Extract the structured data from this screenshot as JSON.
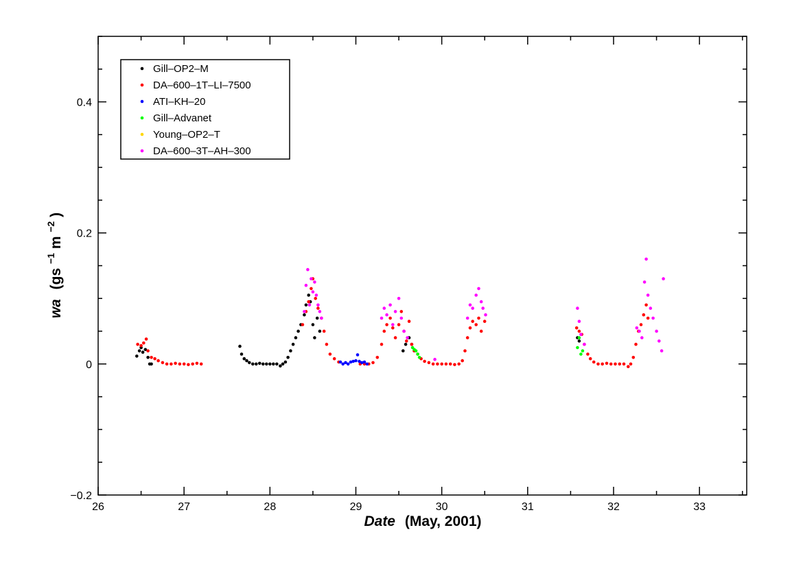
{
  "chart_data": {
    "type": "scatter",
    "xlabel": {
      "italic": "Date",
      "rest": "(May,  2001)"
    },
    "ylabel": {
      "italic": "wa",
      "unit_open": "(gs",
      "sup1": "−1",
      "mid": " m",
      "sup2": "−2",
      "unit_close": ")"
    },
    "xlim": [
      26,
      33.55
    ],
    "ylim": [
      -0.2,
      0.5
    ],
    "x_ticks": [
      "26",
      "27",
      "28",
      "29",
      "30",
      "31",
      "32",
      "33"
    ],
    "y_ticks": [
      "−0.2",
      "0",
      "0.2",
      "0.4"
    ],
    "grid": false,
    "legend_position": "top-left",
    "series": [
      {
        "name": "Gill–OP2–M",
        "color": "#000000",
        "points": [
          [
            26.45,
            0.012
          ],
          [
            26.48,
            0.02
          ],
          [
            26.5,
            0.025
          ],
          [
            26.52,
            0.018
          ],
          [
            26.55,
            0.022
          ],
          [
            26.58,
            0.01
          ],
          [
            26.6,
            0.0
          ],
          [
            26.62,
            0.0
          ],
          [
            27.65,
            0.027
          ],
          [
            27.67,
            0.015
          ],
          [
            27.7,
            0.008
          ],
          [
            27.73,
            0.005
          ],
          [
            27.76,
            0.002
          ],
          [
            27.8,
            0.0
          ],
          [
            27.84,
            0.0
          ],
          [
            27.88,
            0.001
          ],
          [
            27.92,
            0.0
          ],
          [
            27.96,
            0.0
          ],
          [
            28.0,
            0.0
          ],
          [
            28.04,
            0.0
          ],
          [
            28.08,
            0.0
          ],
          [
            28.12,
            -0.003
          ],
          [
            28.15,
            0.0
          ],
          [
            28.18,
            0.003
          ],
          [
            28.21,
            0.01
          ],
          [
            28.24,
            0.02
          ],
          [
            28.27,
            0.03
          ],
          [
            28.3,
            0.04
          ],
          [
            28.33,
            0.05
          ],
          [
            28.36,
            0.06
          ],
          [
            28.4,
            0.075
          ],
          [
            28.42,
            0.09
          ],
          [
            28.45,
            0.105
          ],
          [
            28.47,
            0.095
          ],
          [
            28.5,
            0.06
          ],
          [
            28.52,
            0.04
          ],
          [
            28.55,
            0.07
          ],
          [
            28.58,
            0.05
          ],
          [
            29.55,
            0.02
          ],
          [
            29.58,
            0.03
          ],
          [
            29.62,
            0.04
          ],
          [
            29.65,
            0.03
          ],
          [
            29.68,
            0.02
          ],
          [
            31.58,
            0.04
          ],
          [
            31.6,
            0.035
          ]
        ]
      },
      {
        "name": "DA–600–1T–LI–7500",
        "color": "#ff0000",
        "points": [
          [
            26.46,
            0.03
          ],
          [
            26.5,
            0.028
          ],
          [
            26.53,
            0.032
          ],
          [
            26.56,
            0.038
          ],
          [
            26.58,
            0.02
          ],
          [
            26.62,
            0.01
          ],
          [
            26.66,
            0.008
          ],
          [
            26.7,
            0.005
          ],
          [
            26.75,
            0.002
          ],
          [
            26.8,
            0.0
          ],
          [
            26.85,
            0.0
          ],
          [
            26.9,
            0.001
          ],
          [
            26.95,
            0.0
          ],
          [
            27.0,
            0.0
          ],
          [
            27.05,
            -0.001
          ],
          [
            27.1,
            0.0
          ],
          [
            27.15,
            0.001
          ],
          [
            27.2,
            0.0
          ],
          [
            28.38,
            0.06
          ],
          [
            28.42,
            0.08
          ],
          [
            28.45,
            0.095
          ],
          [
            28.48,
            0.115
          ],
          [
            28.5,
            0.13
          ],
          [
            28.53,
            0.1
          ],
          [
            28.56,
            0.085
          ],
          [
            28.6,
            0.07
          ],
          [
            28.63,
            0.05
          ],
          [
            28.66,
            0.03
          ],
          [
            28.7,
            0.015
          ],
          [
            28.75,
            0.008
          ],
          [
            28.8,
            0.003
          ],
          [
            29.05,
            0.0
          ],
          [
            29.1,
            0.0
          ],
          [
            29.15,
            0.0
          ],
          [
            29.2,
            0.002
          ],
          [
            29.25,
            0.01
          ],
          [
            29.3,
            0.03
          ],
          [
            29.33,
            0.05
          ],
          [
            29.36,
            0.06
          ],
          [
            29.4,
            0.07
          ],
          [
            29.43,
            0.055
          ],
          [
            29.46,
            0.04
          ],
          [
            29.5,
            0.06
          ],
          [
            29.53,
            0.08
          ],
          [
            29.56,
            0.05
          ],
          [
            29.59,
            0.035
          ],
          [
            29.62,
            0.065
          ],
          [
            29.65,
            0.03
          ],
          [
            29.68,
            0.02
          ],
          [
            29.72,
            0.015
          ],
          [
            29.76,
            0.008
          ],
          [
            29.8,
            0.004
          ],
          [
            29.85,
            0.002
          ],
          [
            29.9,
            0.0
          ],
          [
            29.95,
            0.0
          ],
          [
            30.0,
            0.0
          ],
          [
            30.05,
            0.0
          ],
          [
            30.1,
            0.0
          ],
          [
            30.15,
            -0.001
          ],
          [
            30.2,
            0.0
          ],
          [
            30.24,
            0.005
          ],
          [
            30.27,
            0.02
          ],
          [
            30.3,
            0.04
          ],
          [
            30.33,
            0.055
          ],
          [
            30.36,
            0.065
          ],
          [
            30.4,
            0.06
          ],
          [
            30.43,
            0.07
          ],
          [
            30.46,
            0.05
          ],
          [
            30.5,
            0.065
          ],
          [
            31.57,
            0.055
          ],
          [
            31.6,
            0.05
          ],
          [
            31.63,
            0.045
          ],
          [
            31.66,
            0.03
          ],
          [
            31.7,
            0.015
          ],
          [
            31.73,
            0.008
          ],
          [
            31.77,
            0.003
          ],
          [
            31.82,
            0.0
          ],
          [
            31.87,
            0.0
          ],
          [
            31.92,
            0.001
          ],
          [
            31.97,
            0.0
          ],
          [
            32.02,
            0.0
          ],
          [
            32.07,
            0.0
          ],
          [
            32.12,
            0.0
          ],
          [
            32.17,
            -0.004
          ],
          [
            32.2,
            0.0
          ],
          [
            32.23,
            0.01
          ],
          [
            32.26,
            0.03
          ],
          [
            32.29,
            0.05
          ],
          [
            32.32,
            0.06
          ],
          [
            32.35,
            0.075
          ],
          [
            32.38,
            0.09
          ],
          [
            32.4,
            0.07
          ]
        ]
      },
      {
        "name": "ATI–KH–20",
        "color": "#0000ff",
        "points": [
          [
            28.82,
            0.003
          ],
          [
            28.85,
            0.0
          ],
          [
            28.88,
            0.002
          ],
          [
            28.91,
            0.0
          ],
          [
            28.94,
            0.003
          ],
          [
            28.97,
            0.004
          ],
          [
            29.0,
            0.005
          ],
          [
            29.02,
            0.014
          ],
          [
            29.04,
            0.004
          ],
          [
            29.07,
            0.002
          ],
          [
            29.1,
            0.003
          ],
          [
            29.13,
            0.0
          ]
        ]
      },
      {
        "name": "Gill–Advanet",
        "color": "#00ff00",
        "points": [
          [
            29.66,
            0.025
          ],
          [
            29.68,
            0.022
          ],
          [
            29.7,
            0.02
          ],
          [
            29.72,
            0.015
          ],
          [
            29.74,
            0.01
          ],
          [
            31.58,
            0.025
          ],
          [
            31.6,
            0.04
          ],
          [
            31.62,
            0.015
          ],
          [
            31.64,
            0.02
          ]
        ]
      },
      {
        "name": "Young–OP2–T",
        "color": "#ffd700",
        "points": []
      },
      {
        "name": "DA–600–3T–AH–300",
        "color": "#ff00ff",
        "points": [
          [
            28.4,
            0.08
          ],
          [
            28.42,
            0.12
          ],
          [
            28.44,
            0.144
          ],
          [
            28.46,
            0.09
          ],
          [
            28.48,
            0.13
          ],
          [
            28.5,
            0.11
          ],
          [
            28.52,
            0.125
          ],
          [
            28.54,
            0.105
          ],
          [
            28.56,
            0.09
          ],
          [
            28.58,
            0.08
          ],
          [
            28.6,
            0.07
          ],
          [
            29.3,
            0.07
          ],
          [
            29.33,
            0.085
          ],
          [
            29.36,
            0.075
          ],
          [
            29.4,
            0.09
          ],
          [
            29.43,
            0.06
          ],
          [
            29.46,
            0.08
          ],
          [
            29.5,
            0.1
          ],
          [
            29.53,
            0.07
          ],
          [
            29.56,
            0.05
          ],
          [
            29.6,
            0.04
          ],
          [
            29.92,
            0.007
          ],
          [
            30.3,
            0.07
          ],
          [
            30.33,
            0.09
          ],
          [
            30.36,
            0.085
          ],
          [
            30.4,
            0.105
          ],
          [
            30.43,
            0.115
          ],
          [
            30.46,
            0.095
          ],
          [
            30.48,
            0.085
          ],
          [
            30.51,
            0.075
          ],
          [
            31.58,
            0.085
          ],
          [
            31.6,
            0.065
          ],
          [
            31.62,
            0.045
          ],
          [
            31.66,
            0.03
          ],
          [
            32.27,
            0.055
          ],
          [
            32.3,
            0.05
          ],
          [
            32.33,
            0.04
          ],
          [
            32.36,
            0.125
          ],
          [
            32.38,
            0.16
          ],
          [
            32.4,
            0.105
          ],
          [
            32.43,
            0.085
          ],
          [
            32.46,
            0.07
          ],
          [
            32.5,
            0.05
          ],
          [
            32.53,
            0.035
          ],
          [
            32.56,
            0.02
          ],
          [
            32.58,
            0.13
          ]
        ]
      }
    ]
  }
}
